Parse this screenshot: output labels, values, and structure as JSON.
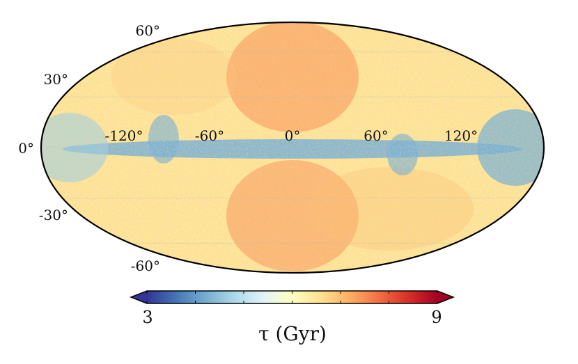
{
  "chart_data": {
    "type": "heatmap",
    "projection": "Mollweide all-sky (Galactic coordinates)",
    "grid": true,
    "longitude_ticks": [
      "-120°",
      "-60°",
      "0°",
      "60°",
      "120°"
    ],
    "latitude_ticks": [
      "60°",
      "30°",
      "0°",
      "-30°",
      "-60°"
    ],
    "colorbar": {
      "label": "τ (Gyr)",
      "min": 3,
      "max": 9,
      "tick_labels": [
        "3",
        "9"
      ],
      "extend": "both",
      "colormap": "RdYlBu_r",
      "colors": [
        "#313695",
        "#4575b4",
        "#74add1",
        "#abd9e9",
        "#e0f3f8",
        "#ffffbf",
        "#fee090",
        "#fdae61",
        "#f46d43",
        "#d73027",
        "#a50026"
      ]
    },
    "features": [
      {
        "description": "young (blue) Galactic plane band along b = 0°",
        "value_range": [
          3.5,
          5.0
        ]
      },
      {
        "description": "old (orange-red) regions at high latitude above and below the Galactic centre",
        "value_range": [
          6.5,
          8.5
        ]
      },
      {
        "description": "general sky mostly mid-to-old ages",
        "value_range": [
          5.5,
          7.5
        ]
      }
    ]
  }
}
